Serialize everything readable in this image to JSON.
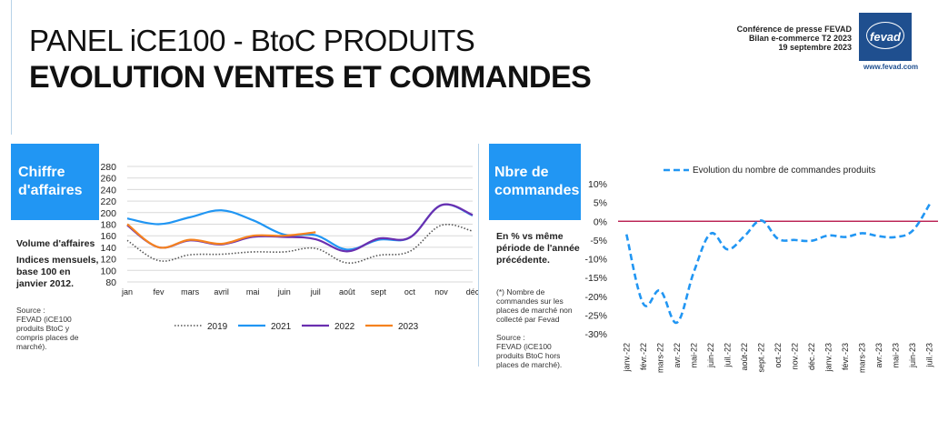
{
  "header": {
    "title_line1": "PANEL iCE100 - BtoC PRODUITS",
    "title_line2": "EVOLUTION VENTES ET COMMANDES",
    "conference_lines": [
      "Conférence de presse FEVAD",
      "Bilan e-commerce T2 2023",
      "19 septembre 2023"
    ],
    "logo_text": "fevad",
    "logo_url": "www.fevad.com",
    "brand_color": "#1f4f8f"
  },
  "left_panel": {
    "box_lines": [
      "Chiffre",
      "d'affaires"
    ],
    "volume_label": "Volume d'affaires",
    "index_note_lines": [
      "Indices mensuels,",
      "base 100 en",
      "janvier 2012."
    ],
    "source_lines": [
      "Source :",
      "FEVAD (iCE100",
      "produits BtoC y",
      "compris places de",
      "marché)."
    ]
  },
  "right_panel": {
    "box_lines": [
      "Nbre de",
      "commandes"
    ],
    "period_note_lines": [
      "En % vs même",
      "période de l'année",
      "précédente."
    ],
    "footnote_lines": [
      "(*) Nombre de",
      "commandes sur les",
      "places de marché non",
      "collecté par Fevad"
    ],
    "source_lines": [
      "Source :",
      "FEVAD (iCE100",
      "produits BtoC hors",
      "places de marché)."
    ]
  },
  "chart_data": [
    {
      "type": "line",
      "categories": [
        "jan",
        "fev",
        "mars",
        "avril",
        "mai",
        "juin",
        "juil",
        "août",
        "sept",
        "oct",
        "nov",
        "déc"
      ],
      "ylim": [
        80,
        280
      ],
      "yticks": [
        80,
        100,
        120,
        140,
        160,
        180,
        200,
        220,
        240,
        260,
        280
      ],
      "grid": true,
      "legend_position": "bottom",
      "series": [
        {
          "name": "2019",
          "color": "#555555",
          "style": "dotted",
          "values": [
            152,
            117,
            127,
            128,
            132,
            132,
            138,
            113,
            126,
            133,
            178,
            168
          ]
        },
        {
          "name": "2021",
          "color": "#2196f3",
          "style": "solid",
          "values": [
            190,
            180,
            192,
            204,
            187,
            162,
            161,
            136,
            153,
            157,
            213,
            195
          ]
        },
        {
          "name": "2022",
          "color": "#6a2fb0",
          "style": "solid",
          "values": [
            178,
            140,
            152,
            145,
            158,
            158,
            154,
            133,
            155,
            157,
            213,
            196
          ]
        },
        {
          "name": "2023",
          "color": "#f5821f",
          "style": "solid",
          "values": [
            180,
            140,
            153,
            146,
            160,
            160,
            166,
            null,
            null,
            null,
            null,
            null
          ]
        }
      ]
    },
    {
      "type": "line",
      "title": "Evolution du nombre de commandes produits",
      "categories": [
        "janv.-22",
        "févr.-22",
        "mars-22",
        "avr.-22",
        "mai-22",
        "juin-22",
        "juil.-22",
        "août-22",
        "sept.-22",
        "oct.-22",
        "nov.-22",
        "déc.-22",
        "janv.-23",
        "févr.-23",
        "mars-23",
        "avr.-23",
        "mai-23",
        "juin-23",
        "juil.-23"
      ],
      "ylim": [
        -30,
        10
      ],
      "yticks": [
        "10%",
        "5%",
        "0%",
        "-5%",
        "-10%",
        "-15%",
        "-20%",
        "-25%",
        "-30%"
      ],
      "ytick_values": [
        10,
        5,
        0,
        -5,
        -10,
        -15,
        -20,
        -25,
        -30
      ],
      "zero_line_color": "#b0003a",
      "series": [
        {
          "name": "Evolution du nombre de commandes produits",
          "color": "#2196f3",
          "style": "dashed",
          "values": [
            -3.5,
            -22,
            -18.5,
            -27,
            -13.5,
            -3.3,
            -7.5,
            -4,
            0.2,
            -4.7,
            -5,
            -5.2,
            -3.8,
            -4.2,
            -3.2,
            -4,
            -4.2,
            -2.5,
            4.5
          ]
        }
      ]
    }
  ]
}
